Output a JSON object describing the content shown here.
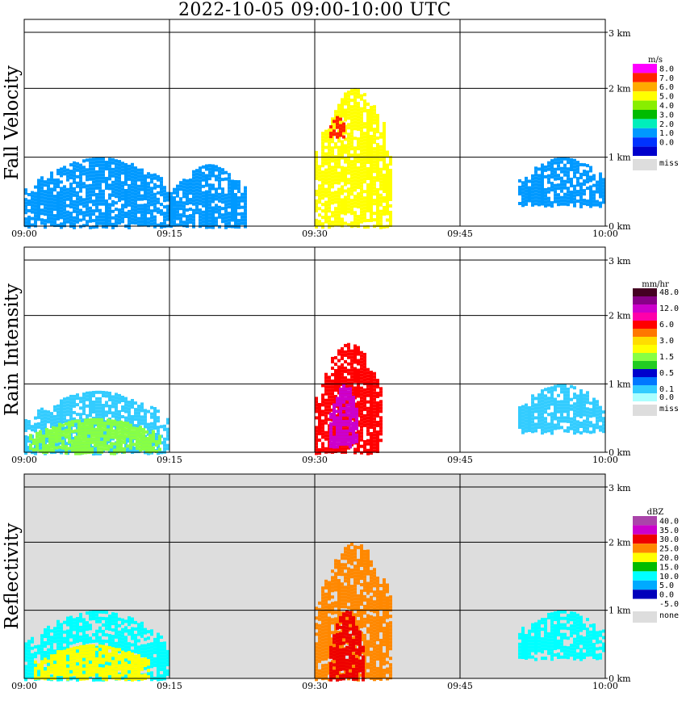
{
  "title": "2022-10-05   09:00-10:00 UTC",
  "chart_data": [
    {
      "type": "heatmap",
      "id": "fall",
      "ylabel": "Fall Velocity",
      "x_ticks": [
        "09:00",
        "09:15",
        "09:30",
        "09:45",
        "10:00"
      ],
      "y_ticks": [
        "0 km",
        "1 km",
        "2 km",
        "3 km"
      ],
      "x_range_minutes": [
        0,
        60
      ],
      "y_range_km": [
        0,
        3.0
      ],
      "legend_unit": "m/s",
      "legend": [
        {
          "label": "8.0",
          "color": "#ff00ff"
        },
        {
          "label": "7.0",
          "color": "#ff2200"
        },
        {
          "label": "6.0",
          "color": "#ffaa00"
        },
        {
          "label": "5.0",
          "color": "#ffff00"
        },
        {
          "label": "4.0",
          "color": "#88ee00"
        },
        {
          "label": "3.0",
          "color": "#00bb00"
        },
        {
          "label": "2.0",
          "color": "#00eebb"
        },
        {
          "label": "1.0",
          "color": "#0099ff"
        },
        {
          "label": "0.0",
          "color": "#0033ff"
        },
        {
          "label": "",
          "color": "#0000cc"
        },
        {
          "label": "miss",
          "color": "#dddddd"
        }
      ],
      "background": "#ffffff",
      "regions": [
        {
          "name": "early-echo",
          "t": [
            0,
            15.5
          ],
          "h": [
            0,
            1.0
          ],
          "level": "1.0"
        },
        {
          "name": "post-09:15-echo",
          "t": [
            15,
            23
          ],
          "h": [
            0,
            0.9
          ],
          "level": "1.0"
        },
        {
          "name": "convective-core",
          "t": [
            30,
            38
          ],
          "h": [
            0,
            2.0
          ],
          "level": "5.0"
        },
        {
          "name": "core-top",
          "t": [
            31.5,
            33
          ],
          "h": [
            1.3,
            1.6
          ],
          "level": "7.0"
        },
        {
          "name": "late-echo",
          "t": [
            51,
            60
          ],
          "h": [
            0.3,
            1.0
          ],
          "level": "1.0"
        }
      ]
    },
    {
      "type": "heatmap",
      "id": "rain",
      "ylabel": "Rain Intensity",
      "x_ticks": [
        "09:00",
        "09:15",
        "09:30",
        "09:45",
        "10:00"
      ],
      "y_ticks": [
        "0 km",
        "1 km",
        "2 km",
        "3 km"
      ],
      "x_range_minutes": [
        0,
        60
      ],
      "y_range_km": [
        0,
        3.0
      ],
      "legend_unit": "mm/hr",
      "legend": [
        {
          "label": "48.0",
          "color": "#440022"
        },
        {
          "label": "",
          "color": "#880088"
        },
        {
          "label": "12.0",
          "color": "#cc00cc"
        },
        {
          "label": "",
          "color": "#ff00aa"
        },
        {
          "label": "6.0",
          "color": "#ff0000"
        },
        {
          "label": "",
          "color": "#ff7700"
        },
        {
          "label": "3.0",
          "color": "#ffdd00"
        },
        {
          "label": "",
          "color": "#ffff00"
        },
        {
          "label": "1.5",
          "color": "#88ff44"
        },
        {
          "label": "",
          "color": "#22cc22"
        },
        {
          "label": "0.5",
          "color": "#0000cc"
        },
        {
          "label": "",
          "color": "#0077ff"
        },
        {
          "label": "0.1",
          "color": "#33ccff"
        },
        {
          "label": "0.0",
          "color": "#aaffff"
        },
        {
          "label": "miss",
          "color": "#dddddd"
        }
      ],
      "background": "#ffffff",
      "regions": [
        {
          "name": "early-light-rain",
          "t": [
            0,
            15
          ],
          "h": [
            0,
            0.9
          ],
          "level": "0.1"
        },
        {
          "name": "early-moderate-rain",
          "t": [
            0.5,
            14
          ],
          "h": [
            0,
            0.5
          ],
          "level": "1.5"
        },
        {
          "name": "convective-core",
          "t": [
            30,
            37
          ],
          "h": [
            0,
            1.6
          ],
          "level": "6.0"
        },
        {
          "name": "core-heavy",
          "t": [
            31.5,
            34.5
          ],
          "h": [
            0.1,
            1.0
          ],
          "level": "12.0"
        },
        {
          "name": "late-light-rain",
          "t": [
            51,
            60
          ],
          "h": [
            0.3,
            1.0
          ],
          "level": "0.1"
        }
      ]
    },
    {
      "type": "heatmap",
      "id": "refl",
      "ylabel": "Reflectivity",
      "x_ticks": [
        "09:00",
        "09:15",
        "09:30",
        "09:45",
        "10:00"
      ],
      "y_ticks": [
        "0 km",
        "1 km",
        "2 km",
        "3 km"
      ],
      "x_range_minutes": [
        0,
        60
      ],
      "y_range_km": [
        0,
        3.0
      ],
      "legend_unit": "dBZ",
      "legend": [
        {
          "label": "40.0",
          "color": "#aa44aa"
        },
        {
          "label": "35.0",
          "color": "#cc00cc"
        },
        {
          "label": "30.0",
          "color": "#ee0000"
        },
        {
          "label": "25.0",
          "color": "#ff8800"
        },
        {
          "label": "20.0",
          "color": "#ffff00"
        },
        {
          "label": "15.0",
          "color": "#00bb00"
        },
        {
          "label": "10.0",
          "color": "#00ffff"
        },
        {
          "label": "5.0",
          "color": "#00aaff"
        },
        {
          "label": "0.0",
          "color": "#0000bb"
        },
        {
          "label": "-5.0",
          "color": "#ffffff"
        },
        {
          "label": "none",
          "color": "#dddddd"
        }
      ],
      "background": "#dddddd",
      "regions": [
        {
          "name": "early-echo",
          "t": [
            0,
            15
          ],
          "h": [
            0,
            1.0
          ],
          "level": "10.0"
        },
        {
          "name": "early-moderate",
          "t": [
            1,
            13
          ],
          "h": [
            0,
            0.5
          ],
          "level": "20.0"
        },
        {
          "name": "convective-core",
          "t": [
            30,
            38
          ],
          "h": [
            0,
            2.0
          ],
          "level": "25.0"
        },
        {
          "name": "core-heavy",
          "t": [
            31.5,
            35
          ],
          "h": [
            0,
            1.0
          ],
          "level": "30.0"
        },
        {
          "name": "late-echo",
          "t": [
            51,
            60
          ],
          "h": [
            0.3,
            1.0
          ],
          "level": "10.0"
        }
      ]
    }
  ]
}
